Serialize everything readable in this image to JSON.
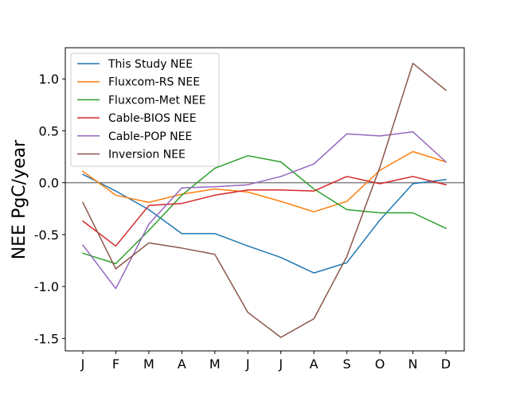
{
  "chart_data": {
    "type": "line",
    "title": "",
    "xlabel": "",
    "ylabel": "NEE PgC/year",
    "categories": [
      "J",
      "F",
      "M",
      "A",
      "M",
      "J",
      "J",
      "A",
      "S",
      "O",
      "N",
      "D"
    ],
    "ylim": [
      -1.62,
      1.3
    ],
    "yticks": [
      1.0,
      0.5,
      0.0,
      -0.5,
      -1.0,
      -1.5
    ],
    "ytick_labels": [
      "1.0",
      "0.5",
      "0.0",
      "-0.5",
      "-1.0",
      "-1.5"
    ],
    "zero_line": {
      "y": 0.0,
      "color": "#808080"
    },
    "grid": false,
    "legend_position": "top-left",
    "series": [
      {
        "name": "This Study NEE",
        "color": "#1f77b4",
        "values": [
          0.08,
          -0.08,
          -0.26,
          -0.49,
          -0.49,
          -0.61,
          -0.72,
          -0.87,
          -0.77,
          -0.36,
          -0.01,
          0.03
        ]
      },
      {
        "name": "Fluxcom-RS NEE",
        "color": "#ff7f0e",
        "values": [
          0.11,
          -0.12,
          -0.19,
          -0.11,
          -0.06,
          -0.09,
          -0.18,
          -0.28,
          -0.18,
          0.12,
          0.3,
          0.2
        ]
      },
      {
        "name": "Fluxcom-Met NEE",
        "color": "#2ca02c",
        "values": [
          -0.68,
          -0.78,
          -0.46,
          -0.12,
          0.14,
          0.26,
          0.2,
          -0.06,
          -0.26,
          -0.29,
          -0.29,
          -0.44
        ]
      },
      {
        "name": "Cable-BIOS NEE",
        "color": "#d62728",
        "values": [
          -0.37,
          -0.61,
          -0.22,
          -0.2,
          -0.12,
          -0.07,
          -0.07,
          -0.08,
          0.06,
          -0.01,
          0.06,
          -0.02
        ]
      },
      {
        "name": "Cable-POP NEE",
        "color": "#9467bd",
        "values": [
          -0.6,
          -1.02,
          -0.4,
          -0.05,
          -0.04,
          -0.02,
          0.06,
          0.18,
          0.47,
          0.45,
          0.49,
          0.2
        ]
      },
      {
        "name": "Inversion NEE",
        "color": "#8c564b",
        "values": [
          -0.19,
          -0.83,
          -0.58,
          -0.63,
          -0.69,
          -1.25,
          -1.49,
          -1.31,
          -0.71,
          0.15,
          1.15,
          0.89
        ]
      }
    ]
  }
}
